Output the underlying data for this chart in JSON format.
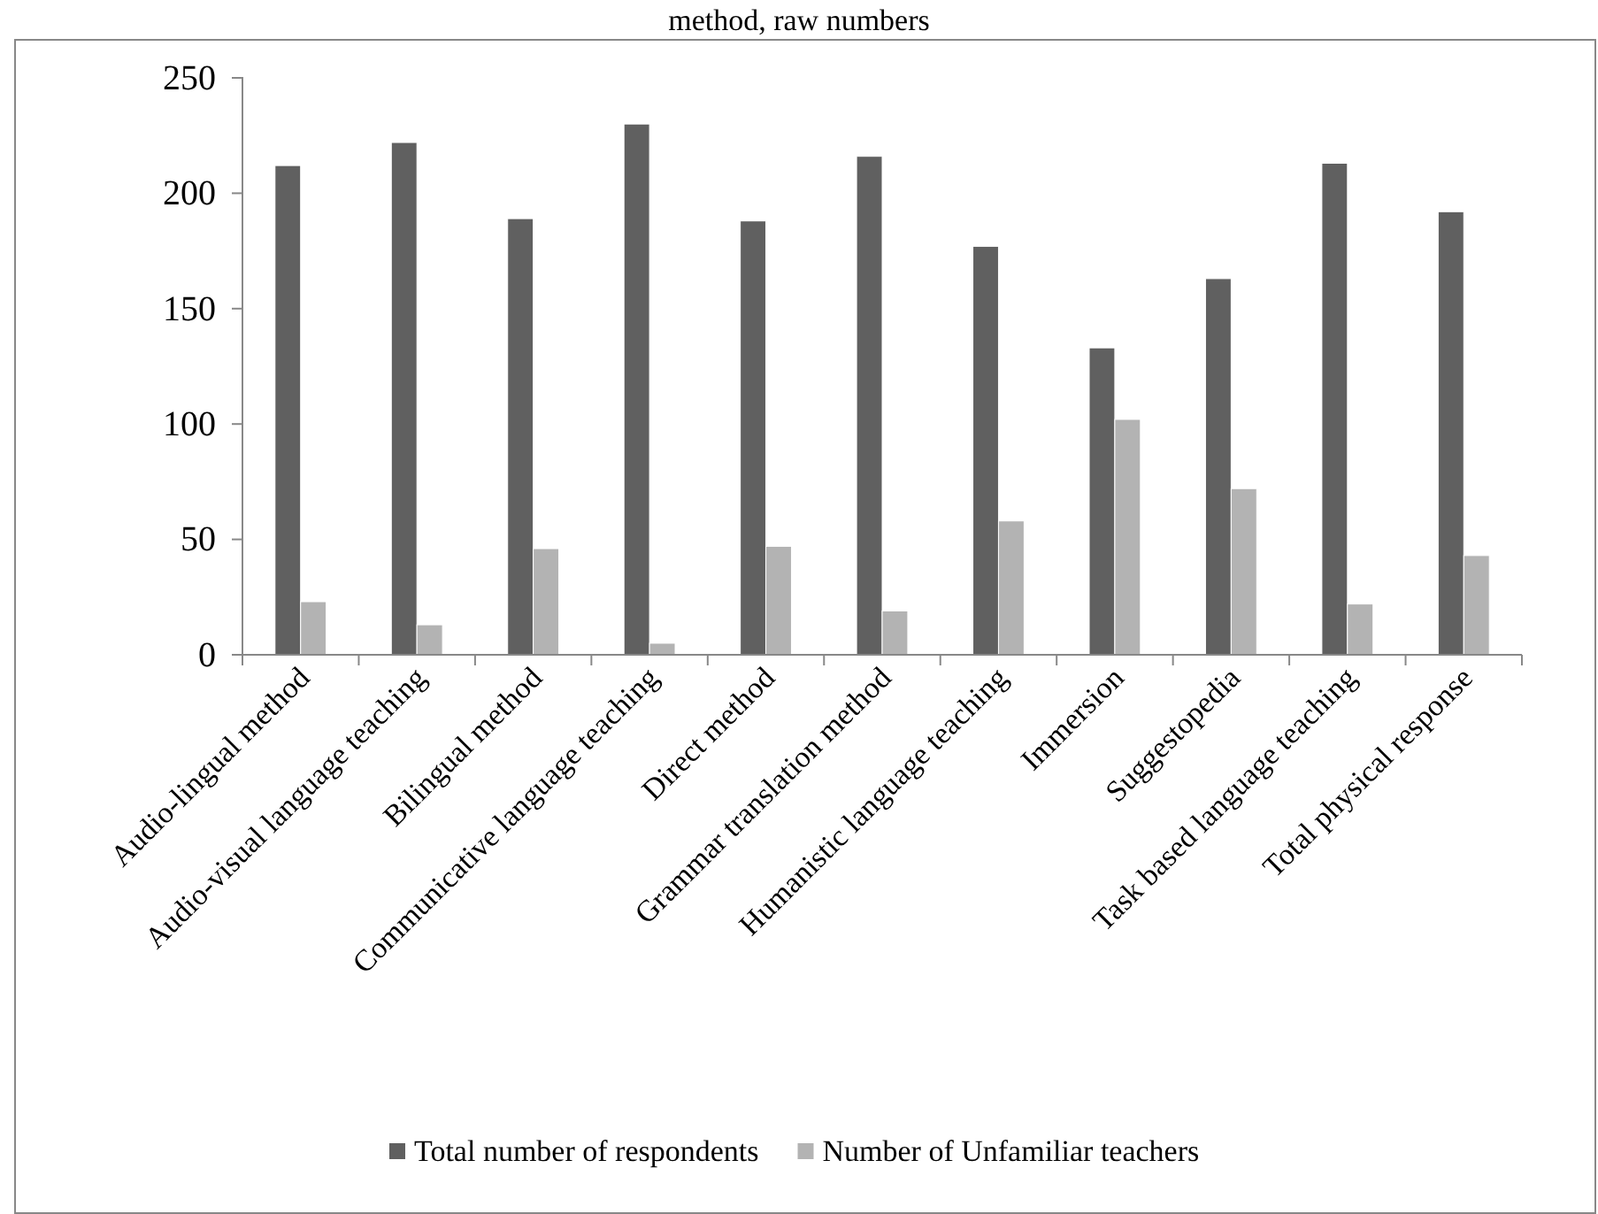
{
  "chart_data": {
    "type": "bar",
    "title": "method, raw numbers",
    "categories": [
      "Audio-lingual method",
      "Audio-visual language teaching",
      "Bilingual method",
      "Communicative language teaching",
      "Direct method",
      "Grammar translation method",
      "Humanistic language teaching",
      "Immersion",
      "Suggestopedia",
      "Task based language teaching",
      "Total physical response"
    ],
    "series": [
      {
        "name": "Total number of respondents",
        "color": "#606060",
        "values": [
          212,
          222,
          189,
          230,
          188,
          216,
          177,
          133,
          163,
          213,
          192
        ]
      },
      {
        "name": "Number of Unfamiliar teachers",
        "color": "#b3b3b3",
        "values": [
          23,
          13,
          46,
          5,
          47,
          19,
          58,
          102,
          72,
          22,
          43
        ]
      }
    ],
    "ylim": [
      0,
      250
    ],
    "yticks": [
      0,
      50,
      100,
      150,
      200,
      250
    ],
    "grid": false,
    "legend": "bottom"
  }
}
